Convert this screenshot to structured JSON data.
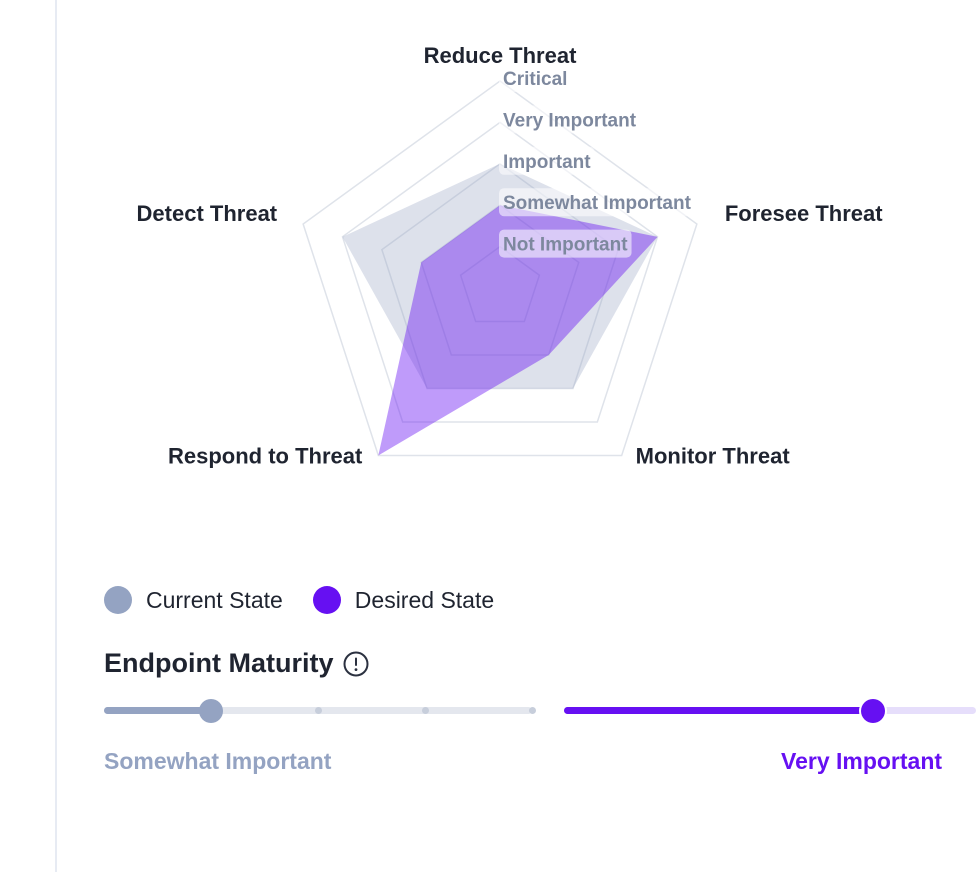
{
  "chart_data": {
    "type": "radar",
    "axes": [
      "Reduce Threat",
      "Foresee Threat",
      "Monitor Threat",
      "Respond to Threat",
      "Detect Threat"
    ],
    "levels": [
      "Not Important",
      "Somewhat Important",
      "Important",
      "Very Important",
      "Critical"
    ],
    "series": [
      {
        "name": "Current State",
        "values": [
          3,
          4,
          3,
          3,
          4
        ],
        "color": "#94a3c2"
      },
      {
        "name": "Desired State",
        "values": [
          2,
          4,
          2,
          5,
          2
        ],
        "color": "#6610f2"
      }
    ]
  },
  "legend": {
    "current_label": "Current State",
    "desired_label": "Desired State"
  },
  "section": {
    "title": "Endpoint Maturity",
    "info_icon": "info-circle-icon"
  },
  "current_slider": {
    "value": 2,
    "max": 5,
    "value_label": "Somewhat Important",
    "color": "#94a3c2"
  },
  "desired_slider": {
    "value": 4,
    "max": 5,
    "value_label": "Very Important",
    "color": "#6610f2"
  }
}
